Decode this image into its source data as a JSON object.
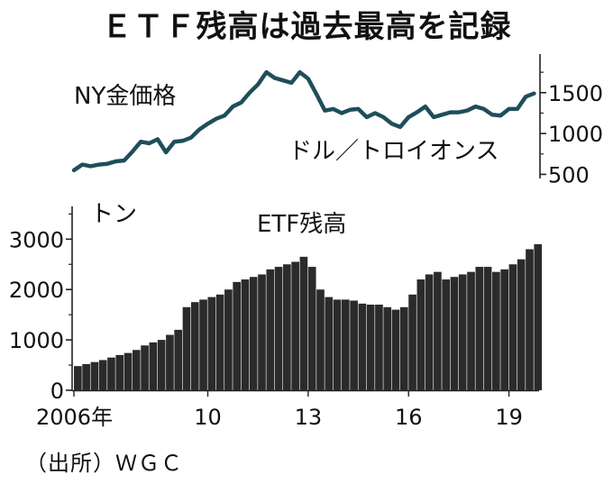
{
  "title": "ＥＴＦ残高は過去最高を記録",
  "source": "（出所）ＷＧＣ",
  "chart_data": [
    {
      "type": "line",
      "series": [
        {
          "name": "NY金価格",
          "x": [
            2006.0,
            2006.25,
            2006.5,
            2006.75,
            2007.0,
            2007.25,
            2007.5,
            2007.75,
            2008.0,
            2008.25,
            2008.5,
            2008.75,
            2009.0,
            2009.25,
            2009.5,
            2009.75,
            2010.0,
            2010.25,
            2010.5,
            2010.75,
            2011.0,
            2011.25,
            2011.5,
            2011.75,
            2012.0,
            2012.25,
            2012.5,
            2012.75,
            2013.0,
            2013.25,
            2013.5,
            2013.75,
            2014.0,
            2014.25,
            2014.5,
            2014.75,
            2015.0,
            2015.25,
            2015.5,
            2015.75,
            2016.0,
            2016.25,
            2016.5,
            2016.75,
            2017.0,
            2017.25,
            2017.5,
            2017.75,
            2018.0,
            2018.25,
            2018.5,
            2018.75,
            2019.0,
            2019.25,
            2019.5,
            2019.75
          ],
          "values": [
            550,
            620,
            600,
            620,
            630,
            660,
            670,
            780,
            900,
            880,
            930,
            770,
            900,
            910,
            950,
            1050,
            1120,
            1180,
            1220,
            1330,
            1380,
            1500,
            1600,
            1750,
            1680,
            1650,
            1620,
            1750,
            1670,
            1480,
            1280,
            1300,
            1250,
            1290,
            1300,
            1200,
            1250,
            1200,
            1120,
            1080,
            1200,
            1260,
            1330,
            1200,
            1230,
            1260,
            1260,
            1280,
            1330,
            1300,
            1230,
            1220,
            1300,
            1300,
            1450,
            1490
          ]
        }
      ],
      "y_ticks": [
        500,
        1000,
        1500
      ],
      "ylim": [
        450,
        1950
      ],
      "xlim": [
        2006,
        2019.9
      ],
      "unit_label": "ドル／トロイオンス"
    },
    {
      "type": "bar",
      "series": [
        {
          "name": "ETF残高",
          "x_start": 2006.0,
          "step": 0.25,
          "values": [
            480,
            520,
            560,
            600,
            650,
            700,
            740,
            800,
            890,
            950,
            1000,
            1100,
            1200,
            1650,
            1750,
            1800,
            1850,
            1900,
            2000,
            2150,
            2200,
            2250,
            2300,
            2400,
            2450,
            2500,
            2550,
            2650,
            2450,
            2000,
            1850,
            1800,
            1800,
            1780,
            1720,
            1700,
            1700,
            1650,
            1600,
            1650,
            1900,
            2200,
            2300,
            2350,
            2200,
            2250,
            2300,
            2350,
            2450,
            2450,
            2350,
            2400,
            2500,
            2600,
            2800,
            2900
          ]
        }
      ],
      "y_ticks": [
        0,
        1000,
        2000,
        3000
      ],
      "ylim": [
        0,
        3650
      ],
      "unit_label": "トン",
      "x_tick_values": [
        2006,
        2010,
        2013,
        2016,
        2019
      ],
      "x_tick_labels": [
        "2006年",
        "10",
        "13",
        "16",
        "19"
      ]
    }
  ]
}
